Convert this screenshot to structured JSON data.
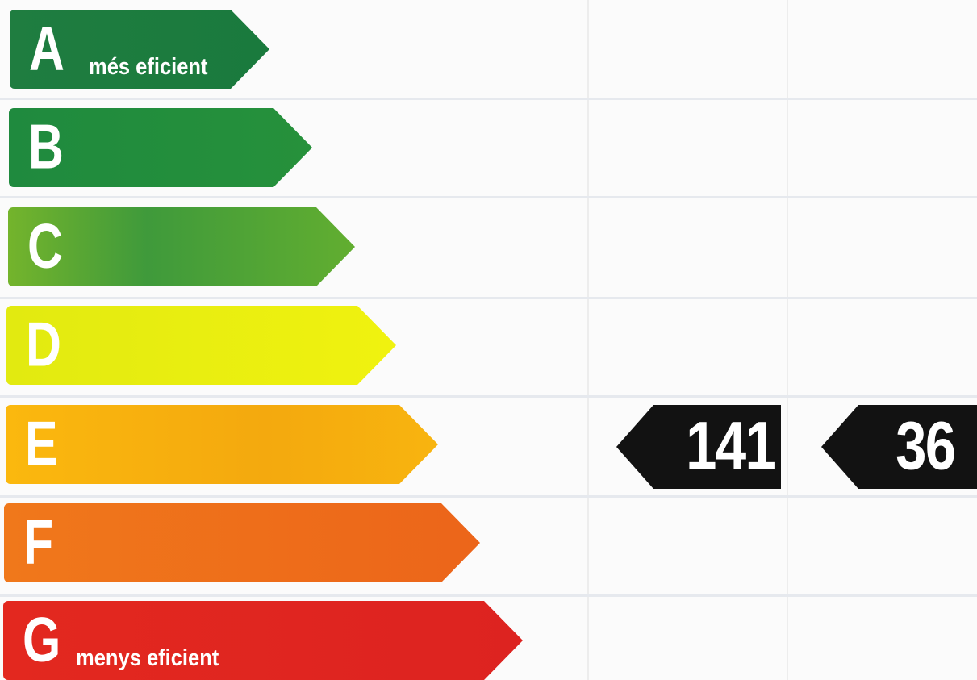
{
  "bands": [
    {
      "letter": "A",
      "sub": "més eficient",
      "color": "#1c7a3e"
    },
    {
      "letter": "B",
      "sub": "",
      "color": "#218b3c"
    },
    {
      "letter": "C",
      "sub": "",
      "color": "#58a935"
    },
    {
      "letter": "D",
      "sub": "",
      "color": "#e8ef12"
    },
    {
      "letter": "E",
      "sub": "",
      "color": "#f6b00d"
    },
    {
      "letter": "F",
      "sub": "",
      "color": "#ee6a1a"
    },
    {
      "letter": "G",
      "sub": "menys eficient",
      "color": "#e0261e"
    }
  ],
  "ratings": [
    {
      "value": "141",
      "band": "E"
    },
    {
      "value": "36",
      "band": "E"
    }
  ]
}
